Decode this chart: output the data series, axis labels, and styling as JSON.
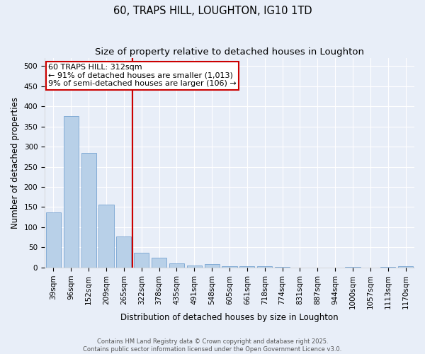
{
  "title": "60, TRAPS HILL, LOUGHTON, IG10 1TD",
  "subtitle": "Size of property relative to detached houses in Loughton",
  "xlabel": "Distribution of detached houses by size in Loughton",
  "ylabel": "Number of detached properties",
  "categories": [
    "39sqm",
    "96sqm",
    "152sqm",
    "209sqm",
    "265sqm",
    "322sqm",
    "378sqm",
    "435sqm",
    "491sqm",
    "548sqm",
    "605sqm",
    "661sqm",
    "718sqm",
    "774sqm",
    "831sqm",
    "887sqm",
    "944sqm",
    "1000sqm",
    "1057sqm",
    "1113sqm",
    "1170sqm"
  ],
  "values": [
    137,
    375,
    285,
    157,
    78,
    37,
    25,
    11,
    5,
    8,
    4,
    4,
    3,
    1,
    0,
    0,
    0,
    2,
    0,
    1,
    3
  ],
  "bar_color": "#b8d0e8",
  "bar_edge_color": "#6699cc",
  "reference_label": "60 TRAPS HILL: 312sqm",
  "annotation_line1": "← 91% of detached houses are smaller (1,013)",
  "annotation_line2": "9% of semi-detached houses are larger (106) →",
  "annotation_box_color": "#ffffff",
  "annotation_box_edge_color": "#cc0000",
  "ref_line_color": "#cc0000",
  "footer_text": "Contains HM Land Registry data © Crown copyright and database right 2025.\nContains public sector information licensed under the Open Government Licence v3.0.",
  "ylim": [
    0,
    520
  ],
  "yticks": [
    0,
    50,
    100,
    150,
    200,
    250,
    300,
    350,
    400,
    450,
    500
  ],
  "background_color": "#e8eef8",
  "grid_color": "#ffffff",
  "title_fontsize": 10.5,
  "subtitle_fontsize": 9.5,
  "axis_label_fontsize": 8.5,
  "tick_fontsize": 7.5,
  "footer_fontsize": 6.0,
  "annot_fontsize": 8.0
}
